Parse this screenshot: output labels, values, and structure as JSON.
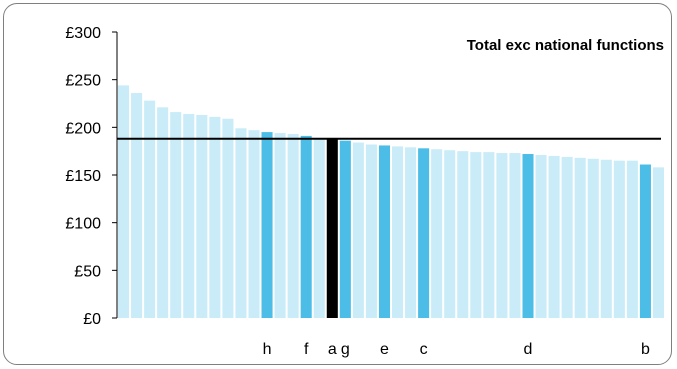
{
  "chart_data": {
    "type": "bar",
    "title": "Total exc national functions",
    "xlabel": "",
    "ylabel": "",
    "ylim": [
      0,
      300
    ],
    "yticks": [
      0,
      50,
      100,
      150,
      200,
      250,
      300
    ],
    "ytick_labels": [
      "£0",
      "£50",
      "£100",
      "£150",
      "£200",
      "£250",
      "£300"
    ],
    "grid": false,
    "reference_line": 188,
    "values": [
      244,
      236,
      228,
      221,
      216,
      214,
      213,
      211,
      209,
      199,
      197,
      195,
      194,
      193,
      191,
      188,
      188,
      186,
      184,
      182,
      181,
      180,
      179,
      178,
      177,
      176,
      175,
      174,
      174,
      173,
      173,
      172,
      171,
      170,
      169,
      168,
      167,
      166,
      165,
      165,
      161,
      158
    ],
    "labels": [
      "",
      "",
      "",
      "",
      "",
      "",
      "",
      "",
      "",
      "",
      "",
      "h",
      "",
      "",
      "f",
      "",
      "a",
      "g",
      "",
      "",
      "e",
      "",
      "",
      "c",
      "",
      "",
      "",
      "",
      "",
      "",
      "",
      "d",
      "",
      "",
      "",
      "",
      "",
      "",
      "",
      "",
      "b",
      ""
    ],
    "highlight_kind": [
      "base",
      "base",
      "base",
      "base",
      "base",
      "base",
      "base",
      "base",
      "base",
      "base",
      "base",
      "named",
      "base",
      "base",
      "named",
      "base",
      "focus",
      "named",
      "base",
      "base",
      "named",
      "base",
      "base",
      "named",
      "base",
      "base",
      "base",
      "base",
      "base",
      "base",
      "base",
      "named",
      "base",
      "base",
      "base",
      "base",
      "base",
      "base",
      "base",
      "base",
      "named",
      "base"
    ],
    "colors": {
      "base": "#c9ecf8",
      "named": "#4bbde6",
      "focus": "#000000",
      "axis": "#000000",
      "reference_line": "#000000"
    }
  }
}
